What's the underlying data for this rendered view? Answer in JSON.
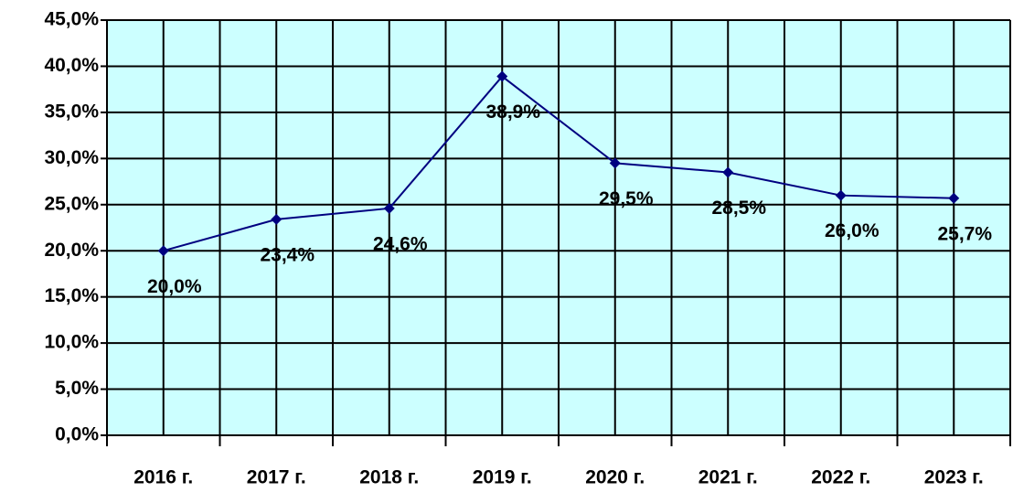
{
  "chart_data": {
    "type": "line",
    "categories": [
      "2016 г.",
      "2017 г.",
      "2018 г.",
      "2019 г.",
      "2020 г.",
      "2021 г.",
      "2022 г.",
      "2023 г."
    ],
    "series": [
      {
        "name": null,
        "color": "#000080",
        "values": [
          20.0,
          23.4,
          24.6,
          38.9,
          29.5,
          28.5,
          26.0,
          25.7
        ],
        "value_labels": [
          "20,0%",
          "23,4%",
          "24,6%",
          "38,9%",
          "29,5%",
          "28,5%",
          "26,0%",
          "25,7%"
        ]
      }
    ],
    "ylim": [
      0,
      45
    ],
    "yticks": [
      {
        "value": 0,
        "label": "0,0%"
      },
      {
        "value": 5,
        "label": "5,0%"
      },
      {
        "value": 10,
        "label": "10,0%"
      },
      {
        "value": 15,
        "label": "15,0%"
      },
      {
        "value": 20,
        "label": "20,0%"
      },
      {
        "value": 25,
        "label": "25,0%"
      },
      {
        "value": 30,
        "label": "30,0%"
      },
      {
        "value": 35,
        "label": "35,0%"
      },
      {
        "value": 40,
        "label": "40,0%"
      },
      {
        "value": 45,
        "label": "45,0%"
      }
    ],
    "grid": true,
    "background": "#ccffff"
  }
}
